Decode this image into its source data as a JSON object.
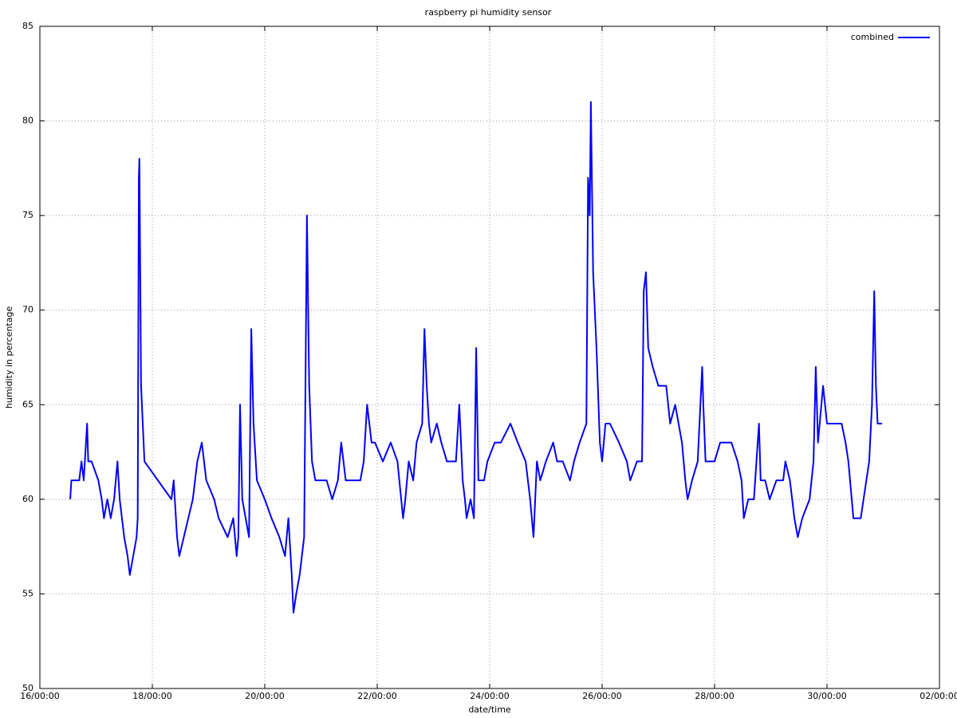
{
  "chart_data": {
    "type": "line",
    "title": "raspberry pi humidity sensor",
    "x_label": "date/time",
    "y_label": "humidity in percentage",
    "legend": "top-right",
    "grid": true,
    "xlim": [
      16,
      32
    ],
    "xticks": [
      {
        "value": 16,
        "label": "16/00:00"
      },
      {
        "value": 18,
        "label": "18/00:00"
      },
      {
        "value": 20,
        "label": "20/00:00"
      },
      {
        "value": 22,
        "label": "22/00:00"
      },
      {
        "value": 24,
        "label": "24/00:00"
      },
      {
        "value": 26,
        "label": "26/00:00"
      },
      {
        "value": 28,
        "label": "28/00:00"
      },
      {
        "value": 30,
        "label": "30/00:00"
      },
      {
        "value": 32,
        "label": "02/00:00"
      }
    ],
    "ylim": [
      50,
      85
    ],
    "yticks": [
      50,
      55,
      60,
      65,
      70,
      75,
      80,
      85
    ],
    "x": [
      16.54,
      16.56,
      16.7,
      16.74,
      16.78,
      16.82,
      16.84,
      16.86,
      16.92,
      17.04,
      17.1,
      17.14,
      17.2,
      17.26,
      17.32,
      17.38,
      17.42,
      17.46,
      17.5,
      17.56,
      17.6,
      17.66,
      17.72,
      17.74,
      17.76,
      17.77,
      17.8,
      17.83,
      17.86,
      18.34,
      18.38,
      18.44,
      18.48,
      18.56,
      18.64,
      18.72,
      18.8,
      18.88,
      18.96,
      19.1,
      19.18,
      19.34,
      19.44,
      19.5,
      19.53,
      19.56,
      19.6,
      19.66,
      19.72,
      19.76,
      19.8,
      19.86,
      20.0,
      20.12,
      20.26,
      20.36,
      20.42,
      20.48,
      20.51,
      20.56,
      20.62,
      20.7,
      20.75,
      20.79,
      20.84,
      20.9,
      21.1,
      21.2,
      21.3,
      21.36,
      21.44,
      21.7,
      21.76,
      21.82,
      21.9,
      21.96,
      22.1,
      22.24,
      22.36,
      22.46,
      22.5,
      22.56,
      22.64,
      22.7,
      22.8,
      22.84,
      22.88,
      22.92,
      22.96,
      23.06,
      23.14,
      23.24,
      23.4,
      23.46,
      23.52,
      23.56,
      23.59,
      23.66,
      23.72,
      23.76,
      23.8,
      23.9,
      23.96,
      24.09,
      24.2,
      24.37,
      24.5,
      24.64,
      24.72,
      24.78,
      24.84,
      24.9,
      25.0,
      25.13,
      25.2,
      25.3,
      25.43,
      25.5,
      25.6,
      25.72,
      25.75,
      25.78,
      25.8,
      25.84,
      25.9,
      25.96,
      26.0,
      26.06,
      26.14,
      26.3,
      26.44,
      26.5,
      26.62,
      26.71,
      26.74,
      26.78,
      26.82,
      26.9,
      27.0,
      27.14,
      27.21,
      27.3,
      27.42,
      27.48,
      27.52,
      27.6,
      27.7,
      27.78,
      27.8,
      27.84,
      27.91,
      28.0,
      28.1,
      28.3,
      28.41,
      28.48,
      28.52,
      28.6,
      28.7,
      28.79,
      28.82,
      28.9,
      28.98,
      29.1,
      29.22,
      29.26,
      29.34,
      29.42,
      29.48,
      29.56,
      29.69,
      29.76,
      29.8,
      29.84,
      29.9,
      29.93,
      30.0,
      30.04,
      30.26,
      30.33,
      30.38,
      30.44,
      30.47,
      30.6,
      30.7,
      30.75,
      30.8,
      30.84,
      30.87,
      30.9,
      30.98
    ],
    "series": [
      {
        "name": "combined",
        "color": "#0000ff",
        "values": [
          60,
          61,
          61,
          62,
          61,
          63,
          64,
          62,
          62,
          61,
          60,
          59,
          60,
          59,
          60,
          62,
          60,
          59,
          58,
          57,
          56,
          57,
          58,
          59,
          77,
          78,
          66,
          64,
          62,
          60,
          61,
          58,
          57,
          58,
          59,
          60,
          62,
          63,
          61,
          60,
          59,
          58,
          59,
          57,
          58,
          65,
          60,
          59,
          58,
          69,
          64,
          61,
          60,
          59,
          58,
          57,
          59,
          56,
          54,
          55,
          56,
          58,
          75,
          66,
          62,
          61,
          61,
          60,
          61,
          63,
          61,
          61,
          62,
          65,
          63,
          63,
          62,
          63,
          62,
          59,
          60,
          62,
          61,
          63,
          64,
          69,
          66,
          64,
          63,
          64,
          63,
          62,
          62,
          65,
          61,
          60,
          59,
          60,
          59,
          68,
          61,
          61,
          62,
          63,
          63,
          64,
          63,
          62,
          60,
          58,
          62,
          61,
          62,
          63,
          62,
          62,
          61,
          62,
          63,
          64,
          77,
          75,
          81,
          72,
          68,
          63,
          62,
          64,
          64,
          63,
          62,
          61,
          62,
          62,
          71,
          72,
          68,
          67,
          66,
          66,
          64,
          65,
          63,
          61,
          60,
          61,
          62,
          67,
          65,
          62,
          62,
          62,
          63,
          63,
          62,
          61,
          59,
          60,
          60,
          64,
          61,
          61,
          60,
          61,
          61,
          62,
          61,
          59,
          58,
          59,
          60,
          62,
          67,
          63,
          65,
          66,
          64,
          64,
          64,
          63,
          62,
          60,
          59,
          59,
          61,
          62,
          65,
          71,
          66,
          64,
          64
        ]
      }
    ]
  }
}
